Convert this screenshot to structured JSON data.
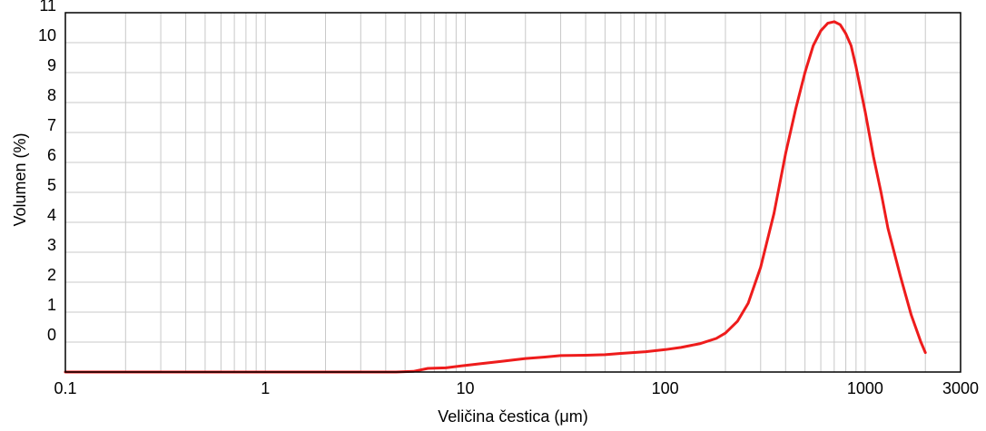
{
  "chart_data": {
    "type": "line",
    "title": "",
    "xlabel": "Veličina čestica (μm)",
    "ylabel": "Volumen (%)",
    "x_scale": "log",
    "xlim": [
      0.1,
      3000
    ],
    "ylim": [
      -1,
      11
    ],
    "grid": true,
    "x_ticks": [
      {
        "value": 0.1,
        "label": "0.1"
      },
      {
        "value": 1,
        "label": "1"
      },
      {
        "value": 10,
        "label": "10"
      },
      {
        "value": 100,
        "label": "100"
      },
      {
        "value": 1000,
        "label": "1000"
      },
      {
        "value": 3000,
        "label": "3000"
      }
    ],
    "y_ticks": [
      {
        "value": 0,
        "label": "0"
      },
      {
        "value": 1,
        "label": "1"
      },
      {
        "value": 2,
        "label": "2"
      },
      {
        "value": 3,
        "label": "3"
      },
      {
        "value": 4,
        "label": "4"
      },
      {
        "value": 5,
        "label": "5"
      },
      {
        "value": 6,
        "label": "6"
      },
      {
        "value": 7,
        "label": "7"
      },
      {
        "value": 8,
        "label": "8"
      },
      {
        "value": 9,
        "label": "9"
      },
      {
        "value": 10,
        "label": "10"
      },
      {
        "value": 11,
        "label": "11"
      }
    ],
    "series": [
      {
        "color": "#ee1c1c",
        "x": [
          0.1,
          0.5,
          1,
          2,
          3,
          4.5,
          5.5,
          6.5,
          8,
          10,
          12,
          15,
          20,
          25,
          30,
          40,
          50,
          60,
          80,
          100,
          120,
          150,
          180,
          200,
          230,
          260,
          300,
          350,
          400,
          450,
          500,
          550,
          600,
          650,
          700,
          750,
          800,
          850,
          900,
          1000,
          1100,
          1200,
          1300,
          1500,
          1700,
          1900,
          2000
        ],
        "y": [
          -1,
          -1,
          -1,
          -1,
          -1,
          -1,
          -0.98,
          -0.88,
          -0.86,
          -0.78,
          -0.72,
          -0.65,
          -0.55,
          -0.5,
          -0.45,
          -0.44,
          -0.42,
          -0.38,
          -0.32,
          -0.25,
          -0.18,
          -0.05,
          0.12,
          0.3,
          0.7,
          1.3,
          2.5,
          4.3,
          6.3,
          7.8,
          9.0,
          9.9,
          10.4,
          10.65,
          10.7,
          10.6,
          10.3,
          9.9,
          9.2,
          7.7,
          6.2,
          5.0,
          3.8,
          2.2,
          0.9,
          0.0,
          -0.35
        ]
      }
    ]
  }
}
